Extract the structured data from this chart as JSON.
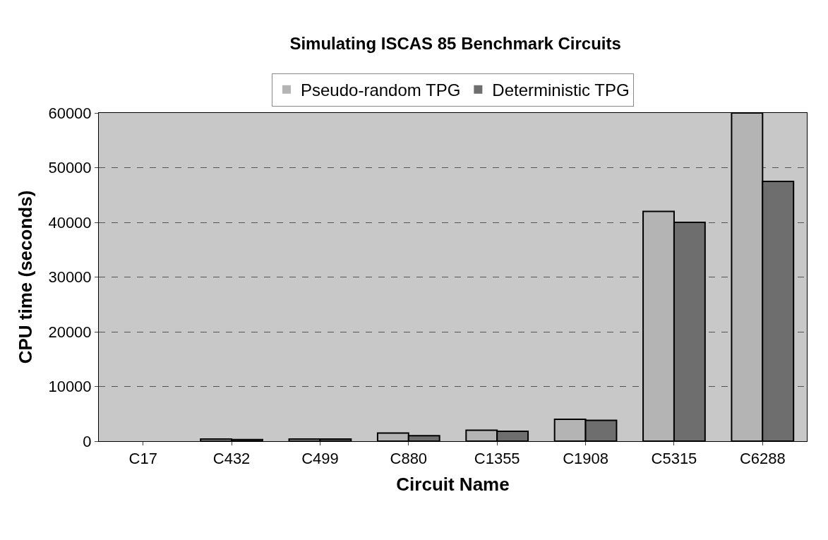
{
  "chart_data": {
    "type": "bar",
    "title": "Simulating ISCAS 85 Benchmark Circuits",
    "xlabel": "Circuit Name",
    "ylabel": "CPU time (seconds)",
    "categories": [
      "C17",
      "C432",
      "C499",
      "C880",
      "C1355",
      "C1908",
      "C5315",
      "C6288"
    ],
    "series": [
      {
        "name": "Pseudo-random TPG",
        "color": "#b4b4b4",
        "values": [
          0,
          400,
          400,
          1500,
          2000,
          4000,
          42000,
          60000
        ]
      },
      {
        "name": "Deterministic TPG",
        "color": "#6e6e6e",
        "values": [
          0,
          300,
          400,
          1000,
          1800,
          3800,
          40000,
          47500
        ]
      }
    ],
    "ylim": [
      0,
      60000
    ],
    "yticks": [
      0,
      10000,
      20000,
      30000,
      40000,
      50000,
      60000
    ],
    "grid": "y",
    "legend": "top"
  }
}
